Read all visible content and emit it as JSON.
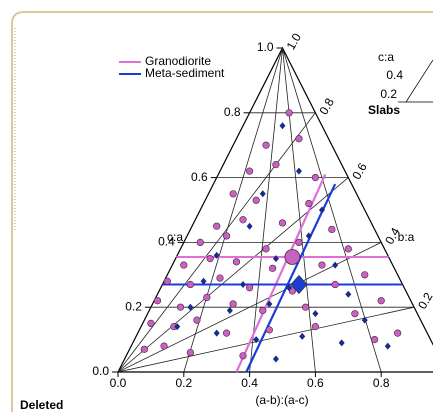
{
  "chart_data": {
    "type": "ternary",
    "left_label": "c:a",
    "right_label": "b:a",
    "bottom_label": "(a-b):(a-c)",
    "xticks": [
      {
        "value": 0,
        "label": "0.0"
      },
      0.2,
      0.4,
      0.6,
      0.8
    ],
    "yticks": [
      {
        "value": 0,
        "label": "0.0"
      },
      0.2,
      0.4,
      0.6,
      0.8,
      {
        "value": 1,
        "label": "1.0"
      }
    ],
    "rticks": [
      0.2,
      0.4,
      0.6,
      0.8,
      {
        "value": 1,
        "label": "1.0"
      }
    ],
    "xlim": [
      0,
      1
    ],
    "ylim": [
      0,
      1
    ],
    "grid": true,
    "legend": "top-left",
    "series": [
      {
        "name": "Granodiorite",
        "color": "#c862c0",
        "marker": "circle",
        "x": [
          0.52,
          0.45,
          0.55,
          0.4,
          0.48,
          0.6,
          0.35,
          0.42,
          0.58,
          0.3,
          0.38,
          0.5,
          0.65,
          0.25,
          0.33,
          0.45,
          0.55,
          0.7,
          0.2,
          0.28,
          0.36,
          0.47,
          0.62,
          0.75,
          0.15,
          0.22,
          0.31,
          0.4,
          0.53,
          0.66,
          0.8,
          0.12,
          0.19,
          0.27,
          0.35,
          0.44,
          0.57,
          0.72,
          0.85,
          0.1,
          0.17,
          0.24,
          0.33,
          0.46,
          0.6,
          0.78,
          0.08,
          0.14,
          0.22,
          0.38
        ],
        "values": [
          0.8,
          0.7,
          0.72,
          0.62,
          0.64,
          0.6,
          0.55,
          0.53,
          0.52,
          0.45,
          0.47,
          0.46,
          0.44,
          0.4,
          0.42,
          0.38,
          0.4,
          0.38,
          0.33,
          0.35,
          0.34,
          0.32,
          0.33,
          0.3,
          0.28,
          0.27,
          0.29,
          0.26,
          0.25,
          0.27,
          0.22,
          0.22,
          0.2,
          0.23,
          0.21,
          0.19,
          0.2,
          0.18,
          0.12,
          0.15,
          0.14,
          0.16,
          0.12,
          0.13,
          0.14,
          0.1,
          0.07,
          0.08,
          0.06,
          0.05
        ],
        "mean": {
          "x": 0.53,
          "y": 0.355
        },
        "fit": {
          "x": [
            0.36,
            0.63
          ],
          "y": [
            0,
            0.61
          ]
        },
        "line_color": "#e070d8"
      },
      {
        "name": "Meta-sediment",
        "color": "#1a2a8a",
        "marker": "diamond",
        "x": [
          0.5,
          0.55,
          0.44,
          0.62,
          0.4,
          0.58,
          0.3,
          0.48,
          0.66,
          0.26,
          0.38,
          0.52,
          0.7,
          0.22,
          0.34,
          0.46,
          0.6,
          0.75,
          0.18,
          0.3,
          0.42,
          0.56,
          0.68,
          0.82,
          0.48
        ],
        "values": [
          0.76,
          0.62,
          0.55,
          0.5,
          0.45,
          0.42,
          0.36,
          0.35,
          0.33,
          0.28,
          0.27,
          0.26,
          0.24,
          0.2,
          0.19,
          0.21,
          0.18,
          0.16,
          0.14,
          0.12,
          0.1,
          0.11,
          0.09,
          0.08,
          0.04
        ],
        "mean": {
          "x": 0.55,
          "y": 0.27
        },
        "fit": {
          "x": [
            0.39,
            0.66
          ],
          "y": [
            0,
            0.58
          ]
        },
        "line_color": "#1c3cd8"
      }
    ]
  },
  "inset": {
    "title": "c:a",
    "ticks": [
      "0.4",
      "0.2"
    ],
    "label": "Slabs"
  },
  "footer": {
    "label": "Deleted"
  }
}
